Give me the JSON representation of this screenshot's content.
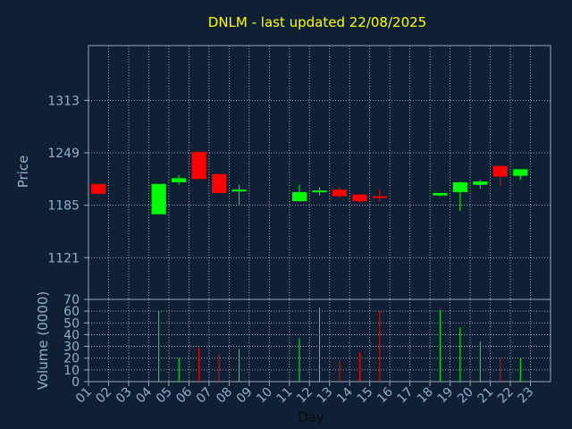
{
  "chart_data": [
    {
      "type": "candlestick",
      "title": "DNLM - last updated 22/08/2025",
      "ylabel": "Price",
      "ylim": [
        1070,
        1380
      ],
      "yticks": [
        1121,
        1185,
        1249,
        1313
      ],
      "grid": true,
      "colors": {
        "up": "#00ff00",
        "down": "#ff0000",
        "background": "#0f2035",
        "title": "#ffff00",
        "axis_text": "#8fb0cc"
      },
      "candles": [
        {
          "day": 1,
          "open": 1211,
          "close": 1199,
          "high": 1211,
          "low": 1199
        },
        {
          "day": 4,
          "open": 1174,
          "close": 1211,
          "high": 1211,
          "low": 1174
        },
        {
          "day": 5,
          "open": 1213,
          "close": 1218,
          "high": 1222,
          "low": 1210
        },
        {
          "day": 6,
          "open": 1250,
          "close": 1217,
          "high": 1250,
          "low": 1217
        },
        {
          "day": 7,
          "open": 1223,
          "close": 1200,
          "high": 1224,
          "low": 1200
        },
        {
          "day": 8,
          "open": 1202,
          "close": 1204,
          "high": 1210,
          "low": 1186
        },
        {
          "day": 11,
          "open": 1190,
          "close": 1201,
          "high": 1210,
          "low": 1190
        },
        {
          "day": 12,
          "open": 1201,
          "close": 1203,
          "high": 1207,
          "low": 1197
        },
        {
          "day": 13,
          "open": 1204,
          "close": 1196,
          "high": 1207,
          "low": 1194
        },
        {
          "day": 14,
          "open": 1198,
          "close": 1190,
          "high": 1199,
          "low": 1188
        },
        {
          "day": 15,
          "open": 1196,
          "close": 1194,
          "high": 1205,
          "low": 1190
        },
        {
          "day": 18,
          "open": 1197,
          "close": 1200,
          "high": 1200,
          "low": 1196
        },
        {
          "day": 19,
          "open": 1201,
          "close": 1213,
          "high": 1214,
          "low": 1178
        },
        {
          "day": 20,
          "open": 1210,
          "close": 1214,
          "high": 1216,
          "low": 1205
        },
        {
          "day": 21,
          "open": 1233,
          "close": 1220,
          "high": 1233,
          "low": 1208
        },
        {
          "day": 22,
          "open": 1221,
          "close": 1229,
          "high": 1229,
          "low": 1216
        }
      ]
    },
    {
      "type": "bar",
      "ylabel": "Volume (0000)",
      "xlabel": "Day",
      "ylim": [
        0,
        70
      ],
      "yticks": [
        0,
        10,
        20,
        30,
        40,
        50,
        60,
        70
      ],
      "categories": [
        "01",
        "02",
        "03",
        "04",
        "05",
        "06",
        "07",
        "08",
        "09",
        "10",
        "11",
        "12",
        "13",
        "14",
        "15",
        "16",
        "17",
        "18",
        "19",
        "20",
        "21",
        "22",
        "23"
      ],
      "grid": true,
      "bars": [
        {
          "day": 4,
          "value": 60,
          "color": "#00ff00"
        },
        {
          "day": 5,
          "value": 20,
          "color": "#00ff00"
        },
        {
          "day": 6,
          "value": 29,
          "color": "#ff0000"
        },
        {
          "day": 7,
          "value": 24,
          "color": "#ff0000"
        },
        {
          "day": 8,
          "value": 28,
          "color": "#00ff00"
        },
        {
          "day": 11,
          "value": 37,
          "color": "#00ff00"
        },
        {
          "day": 12,
          "value": 63,
          "color": "#00ff00"
        },
        {
          "day": 13,
          "value": 18,
          "color": "#ff0000"
        },
        {
          "day": 14,
          "value": 25,
          "color": "#ff0000"
        },
        {
          "day": 15,
          "value": 60,
          "color": "#ff0000"
        },
        {
          "day": 18,
          "value": 61,
          "color": "#00ff00"
        },
        {
          "day": 19,
          "value": 46,
          "color": "#00ff00"
        },
        {
          "day": 20,
          "value": 34,
          "color": "#00ff00"
        },
        {
          "day": 21,
          "value": 20,
          "color": "#ff0000"
        },
        {
          "day": 22,
          "value": 20,
          "color": "#00ff00"
        }
      ]
    }
  ]
}
